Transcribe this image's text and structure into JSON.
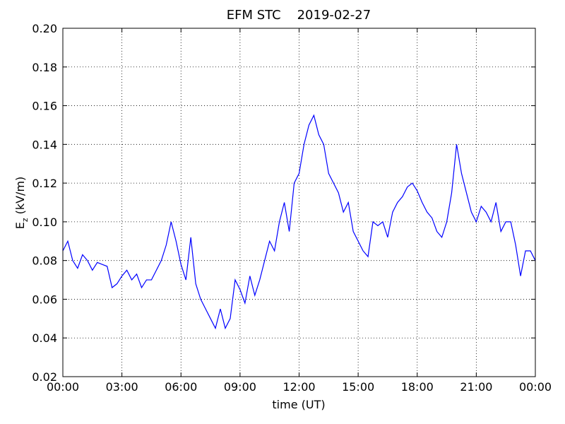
{
  "chart_data": {
    "type": "line",
    "title": "EFM STC    2019-02-27",
    "xlabel": "time (UT)",
    "ylabel": "E",
    "ylabel_sub": "z",
    "ylabel_unit": "(kV/m)",
    "xlim": [
      0,
      24
    ],
    "xticks": [
      {
        "value": 0,
        "label": "00:00"
      },
      {
        "value": 3,
        "label": "03:00"
      },
      {
        "value": 6,
        "label": "06:00"
      },
      {
        "value": 9,
        "label": "09:00"
      },
      {
        "value": 12,
        "label": "12:00"
      },
      {
        "value": 15,
        "label": "15:00"
      },
      {
        "value": 18,
        "label": "18:00"
      },
      {
        "value": 21,
        "label": "21:00"
      },
      {
        "value": 24,
        "label": "00:00"
      }
    ],
    "ylim": [
      0.02,
      0.2
    ],
    "yticks": [
      0.02,
      0.04,
      0.06,
      0.08,
      {
        "value": 0.1,
        "label": "0.10"
      },
      0.12,
      0.14,
      0.16,
      0.18,
      {
        "value": 0.2,
        "label": "0.20"
      }
    ],
    "grid": true,
    "x": [
      0,
      0.25,
      0.5,
      0.75,
      1,
      1.25,
      1.5,
      1.75,
      2,
      2.25,
      2.5,
      2.75,
      3,
      3.25,
      3.5,
      3.75,
      4,
      4.25,
      4.5,
      4.75,
      5,
      5.25,
      5.5,
      5.75,
      6,
      6.25,
      6.5,
      6.75,
      7,
      7.25,
      7.5,
      7.75,
      8,
      8.25,
      8.5,
      8.75,
      9,
      9.25,
      9.5,
      9.75,
      10,
      10.25,
      10.5,
      10.75,
      11,
      11.25,
      11.5,
      11.75,
      12,
      12.25,
      12.5,
      12.75,
      13,
      13.25,
      13.5,
      13.75,
      14,
      14.25,
      14.5,
      14.75,
      15,
      15.25,
      15.5,
      15.75,
      16,
      16.25,
      16.5,
      16.75,
      17,
      17.25,
      17.5,
      17.75,
      18,
      18.25,
      18.5,
      18.75,
      19,
      19.25,
      19.5,
      19.75,
      20,
      20.25,
      20.5,
      20.75,
      21,
      21.25,
      21.5,
      21.75,
      22,
      22.25,
      22.5,
      22.75,
      23,
      23.25,
      23.5,
      23.75,
      24
    ],
    "series": [
      {
        "color": "#0000ff",
        "values": [
          0.085,
          0.09,
          0.08,
          0.076,
          0.083,
          0.08,
          0.075,
          0.079,
          0.078,
          0.077,
          0.066,
          0.068,
          0.072,
          0.075,
          0.07,
          0.073,
          0.066,
          0.07,
          0.07,
          0.075,
          0.08,
          0.088,
          0.1,
          0.09,
          0.078,
          0.07,
          0.092,
          0.068,
          0.06,
          0.055,
          0.05,
          0.045,
          0.055,
          0.045,
          0.05,
          0.07,
          0.065,
          0.058,
          0.072,
          0.062,
          0.07,
          0.08,
          0.09,
          0.085,
          0.1,
          0.11,
          0.095,
          0.12,
          0.125,
          0.14,
          0.15,
          0.155,
          0.145,
          0.14,
          0.125,
          0.12,
          0.115,
          0.105,
          0.11,
          0.095,
          0.09,
          0.085,
          0.082,
          0.1,
          0.098,
          0.1,
          0.092,
          0.105,
          0.11,
          0.113,
          0.118,
          0.12,
          0.116,
          0.11,
          0.105,
          0.102,
          0.095,
          0.092,
          0.1,
          0.115,
          0.14,
          0.125,
          0.115,
          0.105,
          0.1,
          0.108,
          0.105,
          0.1,
          0.11,
          0.095,
          0.1,
          0.1,
          0.088,
          0.072,
          0.085,
          0.085,
          0.08
        ]
      }
    ]
  }
}
